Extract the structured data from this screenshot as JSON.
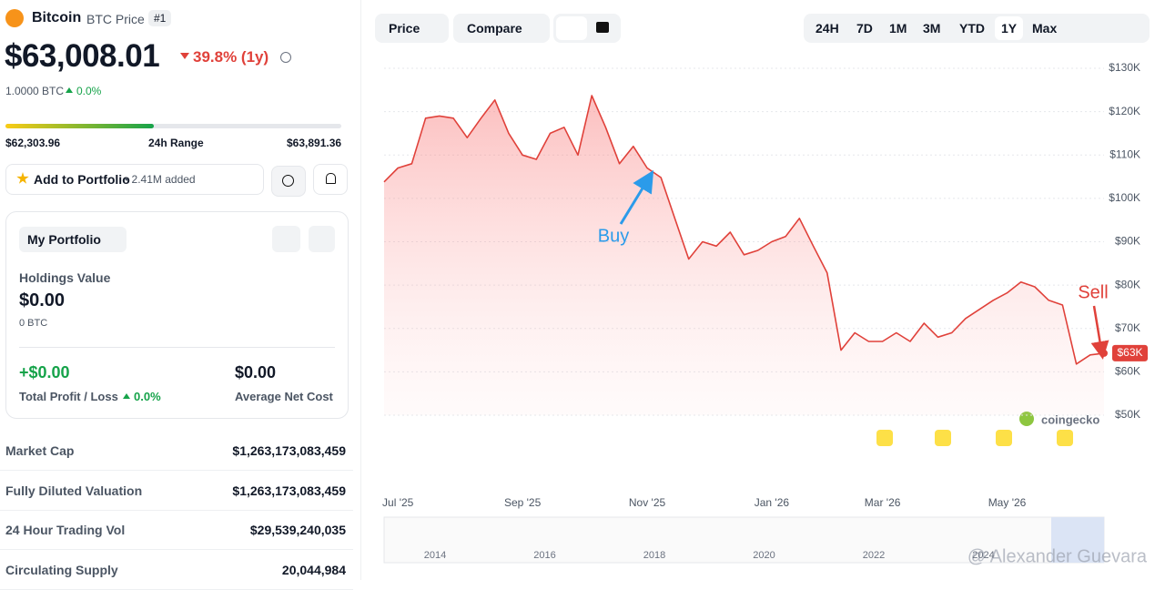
{
  "header": {
    "name": "Bitcoin",
    "symbol": "BTC Price",
    "rank": "#1",
    "price": "$63,008.01",
    "change": "39.8% (1y)",
    "btc_amount": "1.0000 BTC",
    "btc_change": "0.0%"
  },
  "range": {
    "low": "$62,303.96",
    "label": "24h Range",
    "high": "$63,891.36"
  },
  "portfolio_button": {
    "label": "Add to Portfolio",
    "added": "• 2.41M added"
  },
  "portfolio": {
    "title": "My Portfolio",
    "holdings_label": "Holdings Value",
    "holdings_value": "$0.00",
    "holdings_btc": "0 BTC",
    "profit": "+$0.00",
    "profit_label": "Total Profit / Loss",
    "profit_change": "0.0%",
    "net_cost": "$0.00",
    "net_cost_label": "Average Net Cost"
  },
  "stats": [
    {
      "label": "Market Cap",
      "value": "$1,263,173,083,459"
    },
    {
      "label": "Fully Diluted Valuation",
      "value": "$1,263,173,083,459"
    },
    {
      "label": "24 Hour Trading Vol",
      "value": "$29,539,240,035"
    },
    {
      "label": "Circulating Supply",
      "value": "20,044,984"
    }
  ],
  "toolbar": {
    "left": [
      "Price",
      "Compare"
    ],
    "ranges": [
      "24H",
      "7D",
      "1M",
      "3M",
      "YTD",
      "1Y",
      "Max"
    ]
  },
  "chart_data": {
    "type": "line",
    "color": "#e0413a",
    "categories": [
      null,
      "Jul '25",
      null,
      null,
      null,
      null,
      null,
      null,
      null,
      null,
      "Sep '25",
      null,
      null,
      null,
      null,
      null,
      null,
      null,
      null,
      "Nov '25",
      null,
      null,
      null,
      null,
      null,
      null,
      null,
      null,
      "Jan '26",
      null,
      null,
      null,
      null,
      null,
      null,
      null,
      "Mar '26",
      null,
      null,
      null,
      null,
      null,
      null,
      null,
      null,
      "May '26",
      null,
      null,
      null,
      null,
      null,
      null,
      null
    ],
    "values": [
      103800,
      107000,
      108000,
      118500,
      119000,
      118500,
      114000,
      118500,
      122700,
      115000,
      110000,
      109000,
      115000,
      116400,
      110000,
      123700,
      116400,
      108000,
      112000,
      107000,
      104800,
      95400,
      86000,
      90000,
      89000,
      92200,
      87000,
      88000,
      90000,
      91200,
      95400,
      89000,
      82800,
      65000,
      69000,
      67000,
      67000,
      69000,
      67000,
      71200,
      68000,
      69000,
      72300,
      74400,
      76500,
      78200,
      80700,
      79600,
      76500,
      75400,
      61800,
      63900,
      64300
    ],
    "current_label": "$63K",
    "ylim": [
      50000,
      130000
    ],
    "yticks": [
      {
        "value": 50000,
        "label": "$50K"
      },
      {
        "value": 60000,
        "label": "$60K"
      },
      {
        "value": 70000,
        "label": "$70K"
      },
      {
        "value": 80000,
        "label": "$80K"
      },
      {
        "value": 90000,
        "label": "$90K"
      },
      {
        "value": 100000,
        "label": "$100K"
      },
      {
        "value": 110000,
        "label": "$110K"
      },
      {
        "value": 120000,
        "label": "$120K"
      },
      {
        "value": 130000,
        "label": "$130K"
      }
    ],
    "grid": true,
    "annotations": [
      "Buy",
      "Sell"
    ]
  },
  "navigator_years": [
    "2014",
    "2016",
    "2018",
    "2020",
    "2022",
    "2024"
  ],
  "brand": "coingecko",
  "watermark": "@ Alexander Guevara"
}
